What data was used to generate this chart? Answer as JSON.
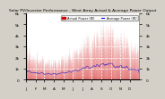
{
  "title": "Solar PV/Inverter Performance - West Array Actual & Average Power Output",
  "bg_color": "#d4d0c8",
  "plot_bg_color": "#ffffff",
  "grid_color": "#ffffff",
  "actual_color": "#cc0000",
  "average_color": "#0000cc",
  "xlim": [
    0,
    365
  ],
  "ylim": [
    0,
    6000
  ],
  "legend_actual": "Actual Power (W)",
  "legend_average": "Average Power (W)"
}
